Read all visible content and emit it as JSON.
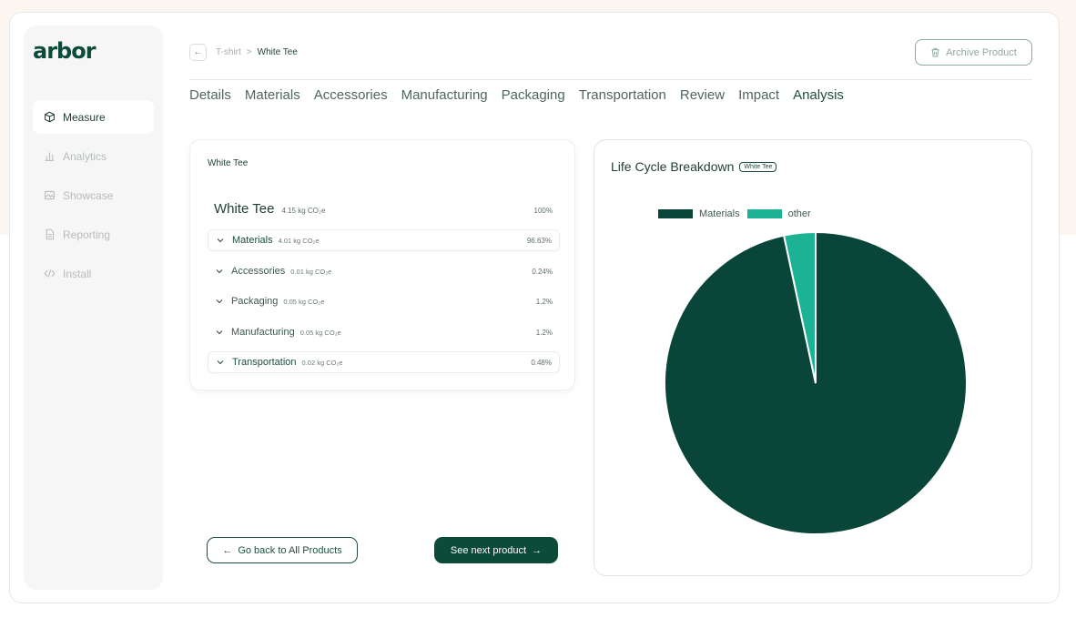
{
  "app": {
    "logo": "arbor"
  },
  "sidebar": {
    "items": [
      {
        "label": "Measure",
        "icon": "cube-icon",
        "active": true
      },
      {
        "label": "Analytics",
        "icon": "bar-chart-icon",
        "active": false
      },
      {
        "label": "Showcase",
        "icon": "image-icon",
        "active": false
      },
      {
        "label": "Reporting",
        "icon": "document-icon",
        "active": false
      },
      {
        "label": "Install",
        "icon": "code-icon",
        "active": false
      }
    ]
  },
  "header": {
    "breadcrumb": {
      "parent": "T-shirt",
      "separator": ">",
      "current": "White Tee"
    },
    "archive_label": "Archive Product"
  },
  "tabs": [
    "Details",
    "Materials",
    "Accessories",
    "Manufacturing",
    "Packaging",
    "Transportation",
    "Review",
    "Impact",
    "Analysis"
  ],
  "active_tab": "Analysis",
  "breakdown": {
    "card_title": "White Tee",
    "total": {
      "name": "White Tee",
      "value": "4.15 kg CO₂e",
      "pct": "100%"
    },
    "rows": [
      {
        "name": "Materials",
        "value": "4.01 kg CO₂e",
        "pct": "96.63%",
        "highlighted": true
      },
      {
        "name": "Accessories",
        "value": "0.01 kg CO₂e",
        "pct": "0.24%",
        "highlighted": false
      },
      {
        "name": "Packaging",
        "value": "0.05 kg CO₂e",
        "pct": "1.2%",
        "highlighted": false
      },
      {
        "name": "Manufacturing",
        "value": "0.05 kg CO₂e",
        "pct": "1.2%",
        "highlighted": false
      },
      {
        "name": "Transportation",
        "value": "0.02 kg CO₂e",
        "pct": "0.48%",
        "highlighted": true
      }
    ]
  },
  "actions": {
    "back_label": "Go back to All Products",
    "next_label": "See next product"
  },
  "chart_panel": {
    "title": "Life Cycle Breakdown",
    "badge": "White Tee"
  },
  "chart_data": {
    "type": "pie",
    "slices": [
      {
        "label": "Materials",
        "value": 96.63,
        "color": "#0a4539"
      },
      {
        "label": "other",
        "value": 3.37,
        "color": "#1bb394"
      }
    ],
    "legend_position": "top-left"
  },
  "colors": {
    "brand": "#0c4a3a",
    "accent": "#1bb394"
  }
}
